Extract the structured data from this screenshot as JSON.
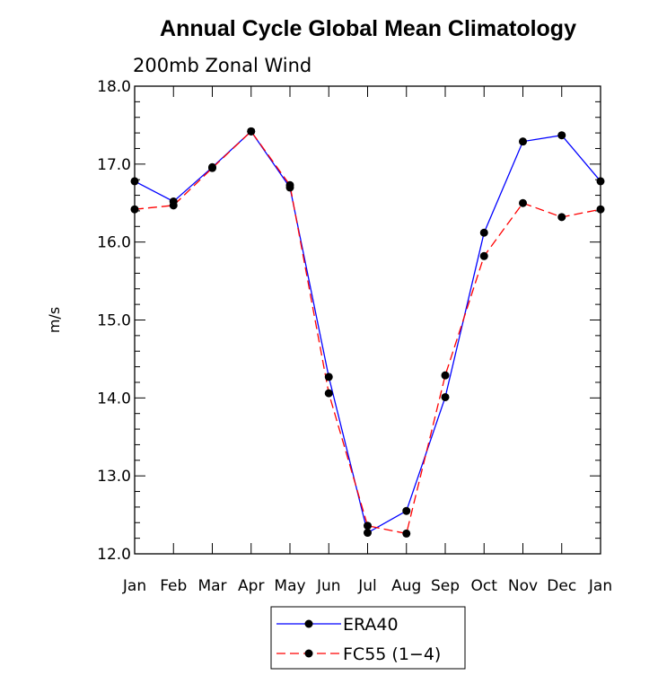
{
  "chart_data": {
    "type": "line",
    "title": "Annual Cycle Global Mean Climatology",
    "subtitle": "200mb Zonal Wind",
    "ylabel": "m/s",
    "xlabel": "",
    "categories": [
      "Jan",
      "Feb",
      "Mar",
      "Apr",
      "May",
      "Jun",
      "Jul",
      "Aug",
      "Sep",
      "Oct",
      "Nov",
      "Dec",
      "Jan"
    ],
    "ylim": [
      12.0,
      18.0
    ],
    "yticks": [
      "12.0",
      "13.0",
      "14.0",
      "15.0",
      "16.0",
      "17.0",
      "18.0"
    ],
    "grid": false,
    "legend_position": "bottom",
    "series": [
      {
        "name": "ERA40",
        "color": "#0000ff",
        "dash": "solid",
        "values": [
          16.78,
          16.52,
          16.96,
          17.42,
          16.7,
          14.27,
          12.27,
          12.55,
          14.01,
          16.12,
          17.29,
          17.37,
          16.78
        ]
      },
      {
        "name": "FC55 (1−4)",
        "color": "#ff0000",
        "dash": "dashed",
        "values": [
          16.42,
          16.47,
          16.95,
          17.42,
          16.73,
          14.06,
          12.36,
          12.26,
          14.29,
          15.82,
          16.5,
          16.32,
          16.42
        ]
      }
    ]
  }
}
